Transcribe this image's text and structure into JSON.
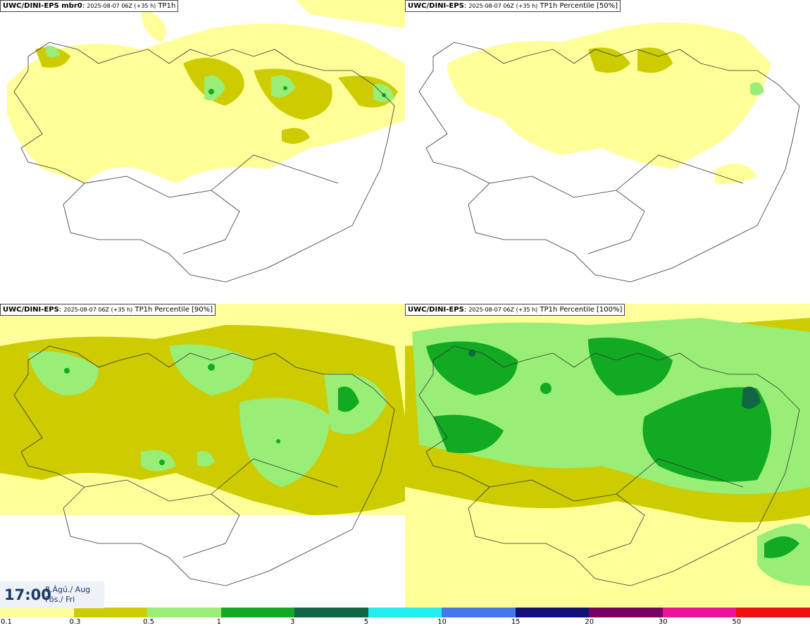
{
  "panels": [
    {
      "model": "UWC/DINI-EPS",
      "member": " mbr0",
      "run": "2025-08-07 06Z (+35 h)",
      "field": "TP1h"
    },
    {
      "model": "UWC/DINI-EPS",
      "member": "",
      "run": "2025-08-07 06Z (+35 h)",
      "field": "TP1h Percentile [50%]"
    },
    {
      "model": "UWC/DINI-EPS",
      "member": "",
      "run": "2025-08-07 06Z (+35 h)",
      "field": "TP1h Percentile [90%]"
    },
    {
      "model": "UWC/DINI-EPS",
      "member": "",
      "run": "2025-08-07 06Z (+35 h)",
      "field": "TP1h Percentile [100%]"
    }
  ],
  "valid_time": {
    "time": "17:00",
    "date": "8.Ágú./ Aug",
    "day": "Fös./ Fri"
  },
  "legend": {
    "ticks": [
      "0.1",
      "0.3",
      "0.5",
      "1",
      "3",
      "5",
      "10",
      "15",
      "20",
      "30",
      "50"
    ],
    "colors": [
      "#ffff99",
      "#cccc00",
      "#99ee77",
      "#11aa22",
      "#116644",
      "#22eeee",
      "#4477ee",
      "#111177",
      "#770066",
      "#ee1199",
      "#ee1111"
    ]
  }
}
